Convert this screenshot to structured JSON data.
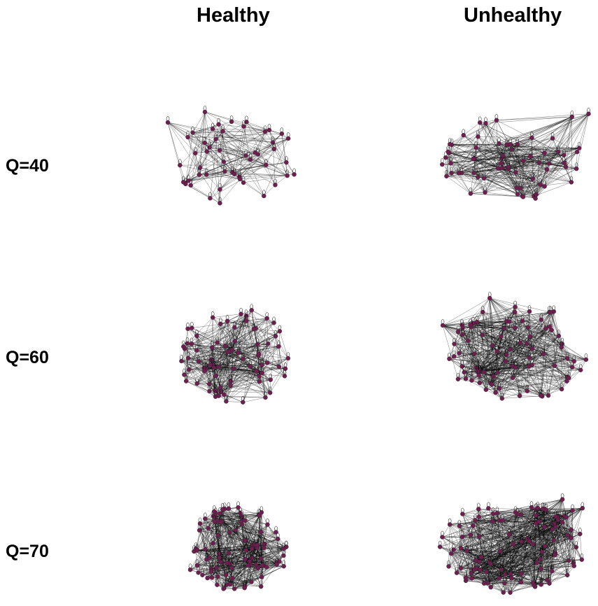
{
  "columns": [
    "Healthy",
    "Unhealthy"
  ],
  "rows": [
    "Q=40",
    "Q=60",
    "Q=70"
  ],
  "colors": {
    "node": "#6e1f4f",
    "edge": "#000000",
    "background": "#ffffff"
  }
}
